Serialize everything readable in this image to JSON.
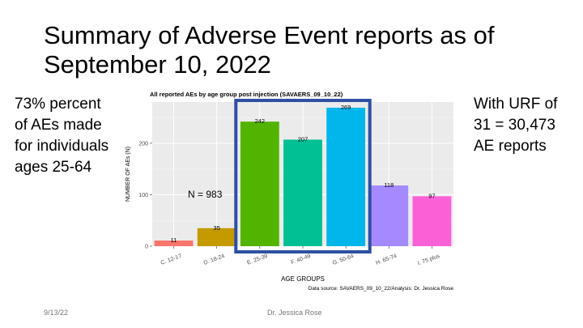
{
  "slide": {
    "title": "Summary of Adverse Event reports as of September 10, 2022",
    "left_note": "73% percent of AEs made for individuals ages 25-64",
    "right_note": "With URF of 31 = 30,473 AE reports",
    "footer_date": "9/13/22",
    "footer_author": "Dr. Jessica Rose"
  },
  "chart_data": {
    "type": "bar",
    "title": "All reported AEs by age group post injection (SAVAERS_09_10_22)",
    "xlabel": "AGE GROUPS",
    "ylabel": "NUMBER OF AEs (N)",
    "categories": [
      "C. 12-17",
      "D. 18-24",
      "E. 25-39",
      "F. 40-49",
      "G. 50-64",
      "H. 65-74",
      "I. 75 plus"
    ],
    "values": [
      11,
      35,
      242,
      207,
      269,
      118,
      97
    ],
    "colors": [
      "#f8766d",
      "#c49a00",
      "#53b400",
      "#00c094",
      "#00b6eb",
      "#a58aff",
      "#fb61d7"
    ],
    "ylim": [
      0,
      280
    ],
    "yticks": [
      0,
      100,
      200
    ],
    "annotation": "N = 983",
    "source": "Data source: SAVAERS_09_10_22/Analysis: Dr. Jessica Rose",
    "highlight": {
      "from_category": "E. 25-39",
      "to_category": "G. 50-64",
      "color": "#2e4fa3"
    },
    "background": "#ebebeb",
    "grid": true
  }
}
